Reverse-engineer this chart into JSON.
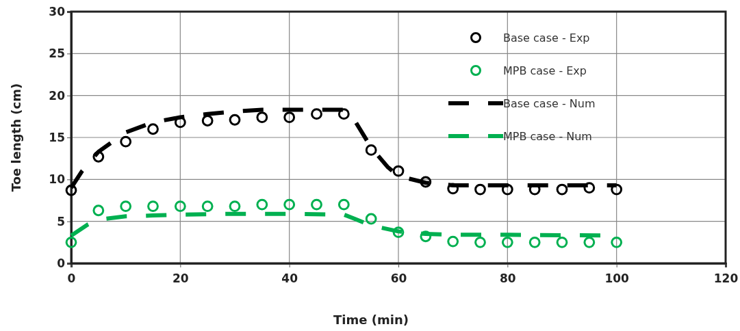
{
  "chart_data": {
    "type": "scatter",
    "xlabel": "Time (min)",
    "ylabel": "Toe length (cm)",
    "xlim": [
      0,
      120
    ],
    "xticks": [
      0,
      20,
      40,
      60,
      80,
      100,
      120
    ],
    "ylim": [
      0,
      30
    ],
    "yticks": [
      0,
      5,
      10,
      15,
      20,
      25,
      30
    ],
    "grid": true,
    "legend": "top right",
    "series": [
      {
        "name": "Base case - Exp",
        "marker": "circle",
        "color": "#000000",
        "x": [
          0,
          5,
          10,
          15,
          20,
          25,
          30,
          35,
          40,
          45,
          50,
          55,
          60,
          65,
          70,
          75,
          80,
          85,
          90,
          95,
          100
        ],
        "values": [
          8.7,
          12.7,
          14.5,
          16,
          16.8,
          17,
          17.1,
          17.4,
          17.4,
          17.8,
          17.8,
          13.5,
          11,
          9.7,
          8.9,
          8.8,
          8.8,
          8.8,
          8.8,
          9,
          8.8
        ]
      },
      {
        "name": "MPB case - Exp",
        "marker": "circle",
        "color": "#00b050",
        "x": [
          0,
          5,
          10,
          15,
          20,
          25,
          30,
          35,
          40,
          45,
          50,
          55,
          60,
          65,
          70,
          75,
          80,
          85,
          90,
          95,
          100
        ],
        "values": [
          2.5,
          6.3,
          6.8,
          6.8,
          6.8,
          6.8,
          6.8,
          7,
          7,
          7,
          7,
          5.3,
          3.7,
          3.2,
          2.6,
          2.5,
          2.5,
          2.5,
          2.5,
          2.5,
          2.5
        ]
      },
      {
        "name": "Base case - Num",
        "type": "line",
        "line_style": "dashed",
        "color": "#000000",
        "x": [
          0,
          2,
          5,
          10,
          15,
          20,
          25,
          30,
          35,
          40,
          45,
          50,
          52,
          55,
          58,
          60,
          65,
          70,
          80,
          100
        ],
        "values": [
          9,
          11,
          13.3,
          15.6,
          16.8,
          17.4,
          17.8,
          18.1,
          18.3,
          18.3,
          18.3,
          18.3,
          17,
          13.8,
          11.5,
          10.4,
          9.6,
          9.3,
          9.3,
          9.3
        ]
      },
      {
        "name": "MPB case - Num",
        "type": "line",
        "line_style": "dashed",
        "color": "#00b050",
        "x": [
          0,
          3,
          5,
          10,
          15,
          20,
          30,
          40,
          50,
          52,
          55,
          60,
          65,
          70,
          80,
          100
        ],
        "values": [
          3.3,
          4.6,
          5.2,
          5.6,
          5.7,
          5.8,
          5.9,
          5.9,
          5.8,
          5.3,
          4.5,
          3.8,
          3.5,
          3.4,
          3.4,
          3.3
        ]
      }
    ]
  }
}
